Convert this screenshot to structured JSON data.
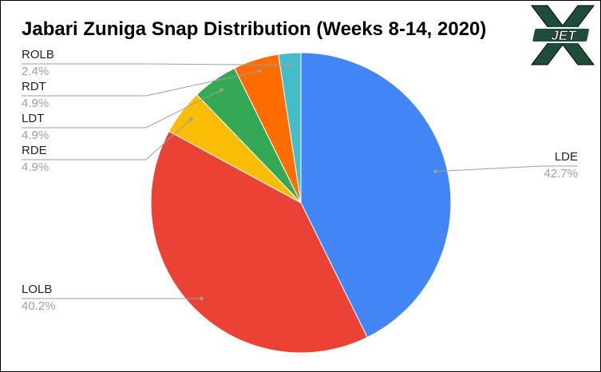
{
  "chart_data": {
    "type": "pie",
    "title": "Jabari Zuniga Snap Distribution (Weeks 8-14, 2020)",
    "slices": [
      {
        "label": "LDE",
        "value": 42.7,
        "display": "42.7%",
        "color": "#4285F4"
      },
      {
        "label": "LOLB",
        "value": 40.2,
        "display": "40.2%",
        "color": "#EA4335"
      },
      {
        "label": "RDE",
        "value": 4.9,
        "display": "4.9%",
        "color": "#FBBC04"
      },
      {
        "label": "LDT",
        "value": 4.9,
        "display": "4.9%",
        "color": "#34A853"
      },
      {
        "label": "RDT",
        "value": 4.9,
        "display": "4.9%",
        "color": "#FF6D01"
      },
      {
        "label": "ROLB",
        "value": 2.4,
        "display": "2.4%",
        "color": "#46BDC6"
      }
    ],
    "legend": "none",
    "label_style": "callout lines with category and percent"
  },
  "logo": {
    "text": "JET",
    "colors": {
      "primary": "#1E4D3A",
      "outline": "#000000",
      "fill": "#ffffff"
    }
  }
}
